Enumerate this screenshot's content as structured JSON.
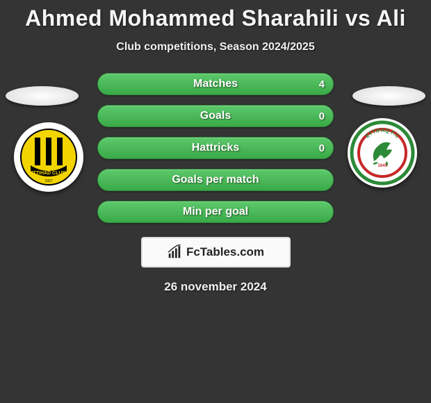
{
  "title": "Ahmed Mohammed Sharahili vs Ali",
  "subtitle": "Club competitions, Season 2024/2025",
  "date": "26 november 2024",
  "brand": "FcTables.com",
  "colors": {
    "background": "#343434",
    "bar_gradient_top": "#5cc96a",
    "bar_gradient_bottom": "#3aa948",
    "bar_border": "#2c8a38",
    "text": "#f5f5f5"
  },
  "bars": [
    {
      "label": "Matches",
      "left": "",
      "right": "4",
      "fill_pct": 0
    },
    {
      "label": "Goals",
      "left": "",
      "right": "0",
      "fill_pct": 0
    },
    {
      "label": "Hattricks",
      "left": "",
      "right": "0",
      "fill_pct": 0
    },
    {
      "label": "Goals per match",
      "left": "",
      "right": "",
      "fill_pct": 0
    },
    {
      "label": "Min per goal",
      "left": "",
      "right": "",
      "fill_pct": 0
    }
  ],
  "left_club": {
    "name": "Al-Ittihad Club",
    "badge_bg": "#ffffff",
    "inner_bg": "#f2d400",
    "stripe": "#000000",
    "text": "ITTIHAD CLUB"
  },
  "right_club": {
    "name": "Al-Ettifaq FC",
    "badge_bg": "#ffffff",
    "ring_outer": "#2c8a38",
    "ring_inner": "#c62828",
    "horse": "#2c8a38",
    "text": "ETTIFAQ F.C",
    "year": "1945"
  }
}
